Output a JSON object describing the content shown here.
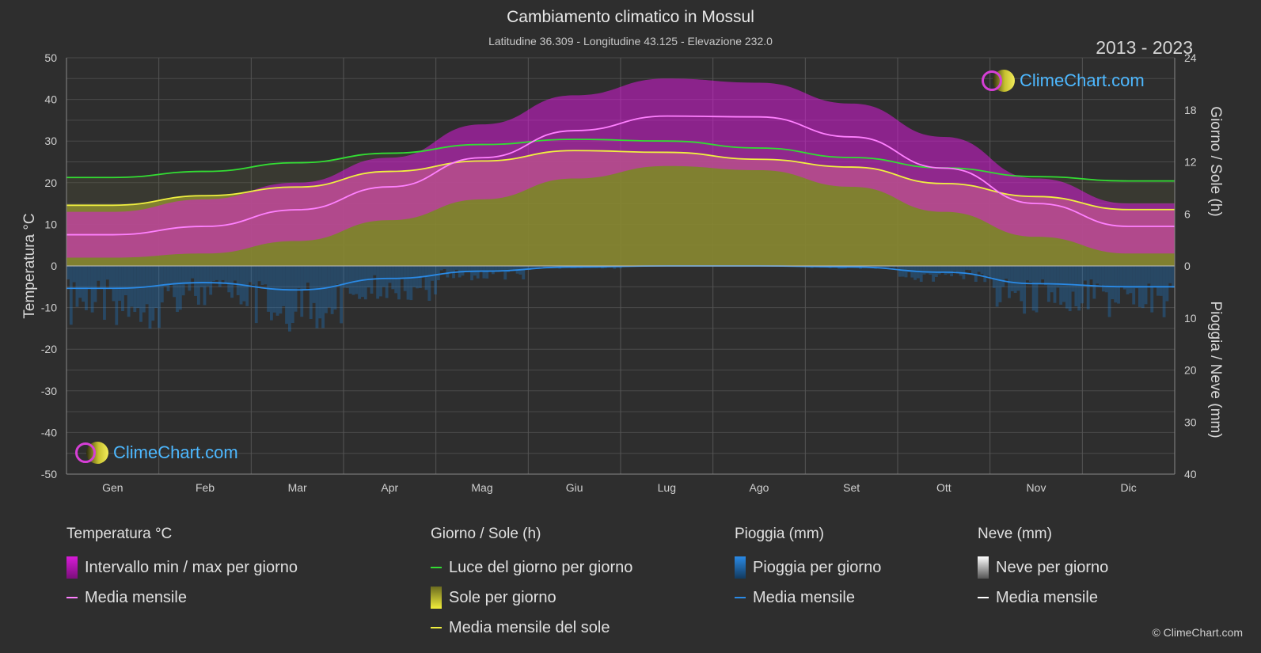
{
  "header": {
    "title": "Cambiamento climatico in Mossul",
    "subtitle": "Latitudine 36.309 - Longitudine 43.125 - Elevazione 232.0",
    "years": "2013 - 2023"
  },
  "logo_text": "ClimeChart.com",
  "copyright": "© ClimeChart.com",
  "colors": {
    "background": "#2e2e2e",
    "temp_range": "#d81bd8",
    "temp_mean": "#ff80ff",
    "daylight": "#33dd33",
    "sunshine": "#9c9c2c",
    "sun_mean": "#f0f040",
    "rain": "#1e78c8",
    "rain_mean": "#2a8ae6",
    "snow_mean": "#ffffff"
  },
  "chart_data": {
    "type": "area",
    "categories": [
      "Gen",
      "Feb",
      "Mar",
      "Apr",
      "Mag",
      "Giu",
      "Lug",
      "Ago",
      "Set",
      "Ott",
      "Nov",
      "Dic"
    ],
    "left_axis": {
      "label": "Temperatura °C",
      "range": [
        -50,
        50
      ],
      "ticks": [
        50,
        40,
        30,
        20,
        10,
        0,
        -10,
        -20,
        -30,
        -40,
        -50
      ]
    },
    "right_axis_top": {
      "label": "Giorno / Sole (h)",
      "range": [
        0,
        24
      ],
      "ticks": [
        24,
        18,
        12,
        6,
        0
      ]
    },
    "right_axis_bottom": {
      "label": "Pioggia / Neve (mm)",
      "range": [
        0,
        40
      ],
      "ticks": [
        0,
        10,
        20,
        30,
        40
      ]
    },
    "series": [
      {
        "name": "Intervallo min / max per giorno",
        "unit": "°C",
        "min": [
          2,
          3,
          6,
          11,
          16,
          21,
          24,
          23,
          19,
          13,
          7,
          3
        ],
        "max": [
          13,
          16,
          20,
          26,
          34,
          41,
          45,
          44,
          39,
          31,
          21,
          15
        ]
      },
      {
        "name": "Media mensile",
        "unit": "°C",
        "values": [
          7.5,
          9.5,
          13.5,
          19,
          26,
          32.5,
          36,
          35.8,
          31,
          23.5,
          15,
          9.5
        ]
      },
      {
        "name": "Luce del giorno per giorno",
        "unit": "h",
        "values": [
          10.2,
          10.9,
          11.9,
          13.0,
          14.0,
          14.6,
          14.4,
          13.6,
          12.5,
          11.3,
          10.3,
          9.8
        ]
      },
      {
        "name": "Sole per giorno",
        "unit": "h",
        "values": [
          7.0,
          8.1,
          9.1,
          10.9,
          12.1,
          13.3,
          13.1,
          12.3,
          11.4,
          9.5,
          8.0,
          6.5
        ]
      },
      {
        "name": "Media mensile del sole",
        "unit": "h",
        "values": [
          7.0,
          8.1,
          9.1,
          10.9,
          12.1,
          13.3,
          13.1,
          12.3,
          11.4,
          9.5,
          8.0,
          6.5
        ]
      },
      {
        "name": "Pioggia per giorno",
        "unit": "mm",
        "values": [
          4.3,
          3.2,
          4.6,
          2.4,
          1.0,
          0.2,
          0.0,
          0.0,
          0.2,
          1.2,
          3.4,
          4.0
        ]
      },
      {
        "name": "Media mensile",
        "unit": "mm",
        "values": [
          4.3,
          3.2,
          4.6,
          2.4,
          1.0,
          0.2,
          0.0,
          0.0,
          0.2,
          1.2,
          3.4,
          4.0
        ]
      }
    ]
  },
  "legend": {
    "temperature": {
      "heading": "Temperatura °C",
      "items": [
        "Intervallo min / max per giorno",
        "Media mensile"
      ]
    },
    "daysun": {
      "heading": "Giorno / Sole (h)",
      "items": [
        "Luce del giorno per giorno",
        "Sole per giorno",
        "Media mensile del sole"
      ]
    },
    "rain": {
      "heading": "Pioggia (mm)",
      "items": [
        "Pioggia per giorno",
        "Media mensile"
      ]
    },
    "snow": {
      "heading": "Neve (mm)",
      "items": [
        "Neve per giorno",
        "Media mensile"
      ]
    }
  }
}
